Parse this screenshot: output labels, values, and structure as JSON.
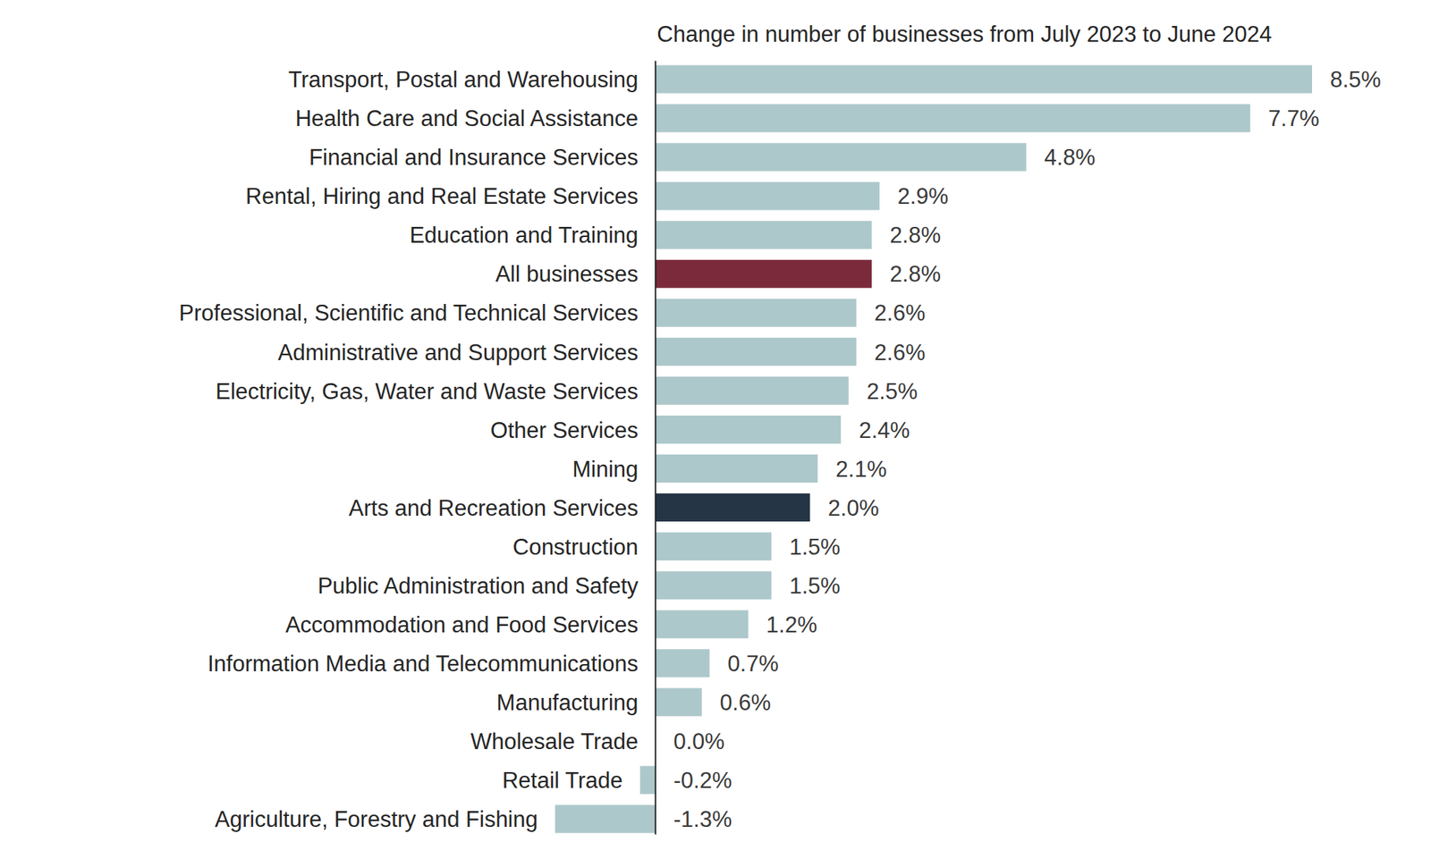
{
  "chart_data": {
    "type": "bar",
    "orientation": "horizontal",
    "title": "Change in number of businesses from July 2023 to June 2024",
    "categories": [
      "Transport, Postal and Warehousing",
      "Health Care and Social Assistance",
      "Financial and Insurance Services",
      "Rental, Hiring and Real Estate Services",
      "Education and Training",
      "All businesses",
      "Professional, Scientific and Technical Services",
      "Administrative and Support Services",
      "Electricity, Gas, Water and Waste Services",
      "Other Services",
      "Mining",
      "Arts and Recreation Services",
      "Construction",
      "Public Administration and Safety",
      "Accommodation and Food Services",
      "Information Media and Telecommunications",
      "Manufacturing",
      "Wholesale Trade",
      "Retail Trade",
      "Agriculture, Forestry and Fishing"
    ],
    "values": [
      8.5,
      7.7,
      4.8,
      2.9,
      2.8,
      2.8,
      2.6,
      2.6,
      2.5,
      2.4,
      2.1,
      2.0,
      1.5,
      1.5,
      1.2,
      0.7,
      0.6,
      0.0,
      -0.2,
      -1.3
    ],
    "value_labels": [
      "8.5%",
      "7.7%",
      "4.8%",
      "2.9%",
      "2.8%",
      "2.8%",
      "2.6%",
      "2.6%",
      "2.5%",
      "2.4%",
      "2.1%",
      "2.0%",
      "1.5%",
      "1.5%",
      "1.2%",
      "0.7%",
      "0.6%",
      "0.0%",
      "-0.2%",
      "-1.3%"
    ],
    "colors": [
      "#adc8cb",
      "#adc8cb",
      "#adc8cb",
      "#adc8cb",
      "#adc8cb",
      "#7b2a3b",
      "#adc8cb",
      "#adc8cb",
      "#adc8cb",
      "#adc8cb",
      "#adc8cb",
      "#253545",
      "#adc8cb",
      "#adc8cb",
      "#adc8cb",
      "#adc8cb",
      "#adc8cb",
      "#adc8cb",
      "#adc8cb",
      "#adc8cb"
    ],
    "xlim": [
      -1.3,
      8.5
    ],
    "data_labels": true,
    "tick_labels": false,
    "grid": false
  }
}
